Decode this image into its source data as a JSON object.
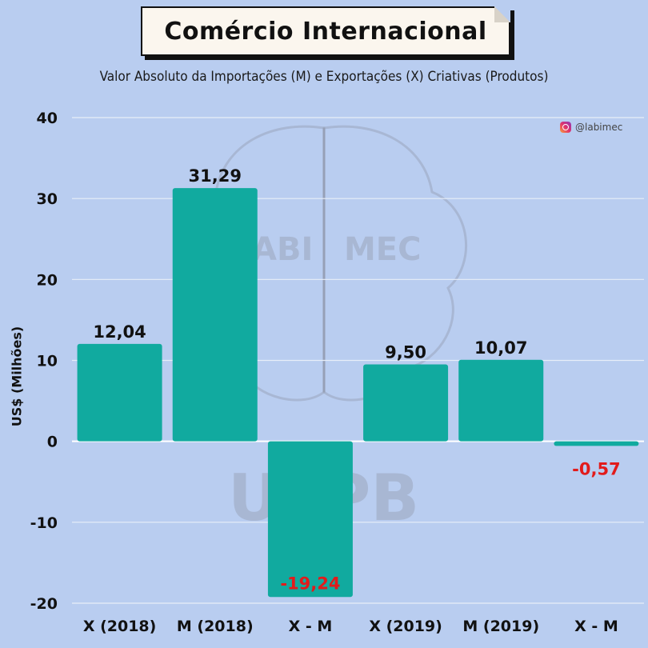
{
  "header": {
    "title": "Comércio Internacional",
    "subtitle": "Valor Absoluto da Importações (M) e Exportações (X) Criativas (Produtos)",
    "handle": "@labimec",
    "handle_icon": "instagram-icon"
  },
  "watermark": {
    "left_text": "ABI",
    "right_text": "MEC",
    "bottom_text": "UFPB"
  },
  "chart_data": {
    "type": "bar",
    "title": "Comércio Internacional",
    "subtitle": "Valor Absoluto da Importações (M) e Exportações (X) Criativas (Produtos)",
    "xlabel": "",
    "ylabel": "US$ (Milhões)",
    "categories": [
      "X (2018)",
      "M (2018)",
      "X - M",
      "X (2019)",
      "M (2019)",
      "X - M"
    ],
    "values": [
      12.04,
      31.29,
      -19.24,
      9.5,
      10.07,
      -0.57
    ],
    "value_labels": [
      "12,04",
      "31,29",
      "-19,24",
      "9,50",
      "10,07",
      "-0,57"
    ],
    "ylim": [
      -20,
      40
    ],
    "yticks": [
      -20,
      -10,
      0,
      10,
      20,
      30,
      40
    ],
    "ytick_labels": [
      "-20",
      "-10",
      "0",
      "10",
      "20",
      "30",
      "40"
    ],
    "grid": true,
    "colors": {
      "bar": "#11aa9f",
      "positive_label": "#111111",
      "negative_label": "#e21b1b"
    }
  }
}
